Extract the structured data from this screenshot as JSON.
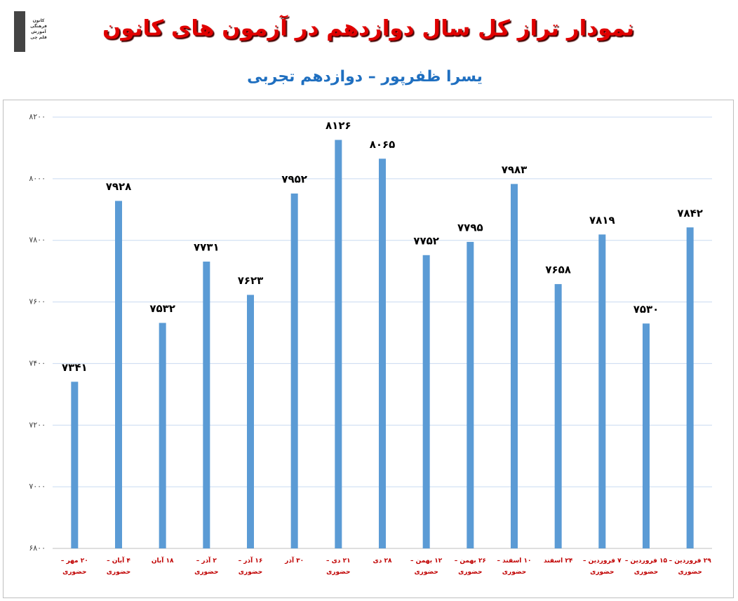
{
  "logo": {
    "lines": [
      "کانون",
      "فرهنگی",
      "آموزش",
      "قلم چی"
    ]
  },
  "chart_data": {
    "type": "bar",
    "title": "نمودار تراز کل سال دوازدهم در آزمون های کانون",
    "subtitle": "یسرا ظفرپور – دوازدهم تجربی",
    "categories": [
      "۲۰ مهر –\nحضوری",
      "۴ آبان –\nحضوری",
      "۱۸ آبان",
      "۲ آذر –\nحضوری",
      "۱۶ آذر –\nحضوری",
      "۳۰ آذر",
      "۲۱ دی –\nحضوری",
      "۲۸ دی",
      "۱۲ بهمن –\nحضوری",
      "۲۶ بهمن –\nحضوری",
      "۱۰ اسفند –\nحضوری",
      "۲۴ اسفند",
      "۷ فروردین –\nحضوری",
      "۱۵ فروردین –\nحضوری",
      "۲۹ فروردین –\nحضوری"
    ],
    "values": [
      7341,
      7928,
      7532,
      7731,
      7623,
      7952,
      8126,
      8065,
      7752,
      7795,
      7983,
      7658,
      7819,
      7530,
      7842
    ],
    "value_labels": [
      "۷۳۴۱",
      "۷۹۲۸",
      "۷۵۳۲",
      "۷۷۳۱",
      "۷۶۲۳",
      "۷۹۵۲",
      "۸۱۲۶",
      "۸۰۶۵",
      "۷۷۵۲",
      "۷۷۹۵",
      "۷۹۸۳",
      "۷۶۵۸",
      "۷۸۱۹",
      "۷۵۳۰",
      "۷۸۴۲"
    ],
    "color": "#5b9bd5",
    "ylim": [
      6800,
      8200
    ],
    "yticks": [
      {
        "value": 6800,
        "label": "۶۸۰۰"
      },
      {
        "value": 7000,
        "label": "۷۰۰۰"
      },
      {
        "value": 7200,
        "label": "۷۲۰۰"
      },
      {
        "value": 7400,
        "label": "۷۴۰۰"
      },
      {
        "value": 7600,
        "label": "۷۶۰۰"
      },
      {
        "value": 7800,
        "label": "۷۸۰۰"
      },
      {
        "value": 8000,
        "label": "۸۰۰۰"
      },
      {
        "value": 8200,
        "label": "۸۲۰۰"
      }
    ],
    "grid": true
  }
}
